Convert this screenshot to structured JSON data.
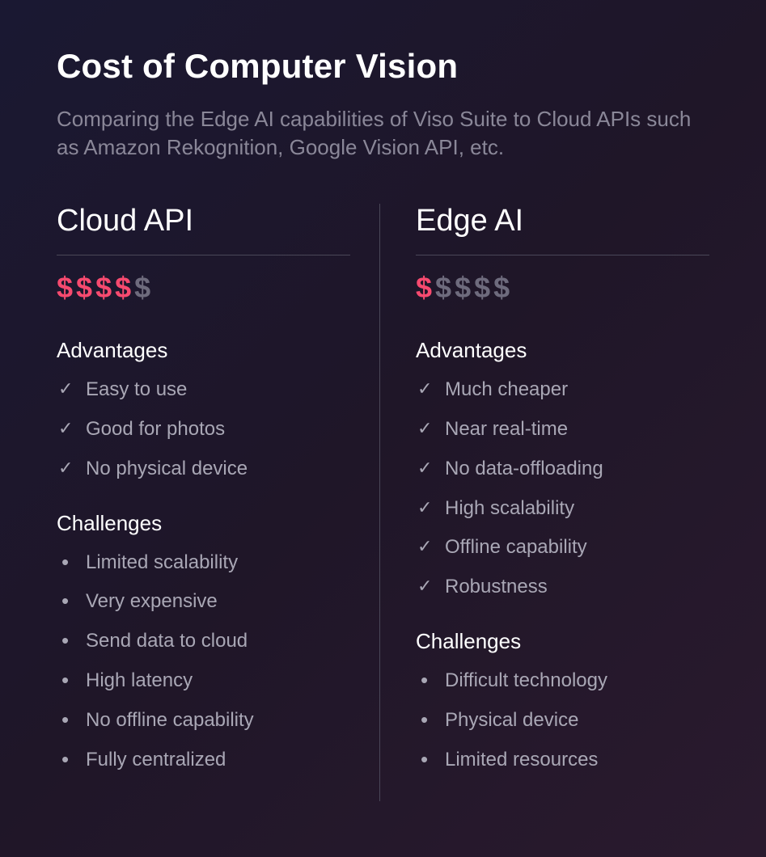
{
  "header": {
    "title": "Cost of Computer Vision",
    "subtitle": "Comparing the Edge AI capabilities of Viso Suite to Cloud APIs such as Amazon Rekognition, Google Vision API, etc."
  },
  "colors": {
    "background_gradient": [
      "#1a1832",
      "#1f1628",
      "#2a1a2e"
    ],
    "title_color": "#ffffff",
    "subtitle_color": "#8a8798",
    "divider_color": "#4a4758",
    "cost_filled": "#f74a6f",
    "cost_empty": "#6e6b7d",
    "list_text": "#a9a7b5"
  },
  "typography": {
    "title_fontsize": 42,
    "subtitle_fontsize": 26,
    "col_title_fontsize": 38,
    "section_heading_fontsize": 26,
    "list_item_fontsize": 24,
    "dollar_fontsize": 36
  },
  "cost_scale_max": 5,
  "columns": {
    "left": {
      "title": "Cloud API",
      "cost_level": 4,
      "advantages_heading": "Advantages",
      "advantages": [
        "Easy to use",
        "Good for photos",
        "No physical device"
      ],
      "challenges_heading": "Challenges",
      "challenges": [
        "Limited scalability",
        "Very expensive",
        "Send data to cloud",
        "High latency",
        "No offline capability",
        "Fully centralized"
      ]
    },
    "right": {
      "title": "Edge AI",
      "cost_level": 1,
      "advantages_heading": "Advantages",
      "advantages": [
        "Much cheaper",
        "Near real-time",
        "No data-offloading",
        "High scalability",
        "Offline capability",
        "Robustness"
      ],
      "challenges_heading": "Challenges",
      "challenges": [
        "Difficult technology",
        "Physical device",
        "Limited resources"
      ]
    }
  }
}
